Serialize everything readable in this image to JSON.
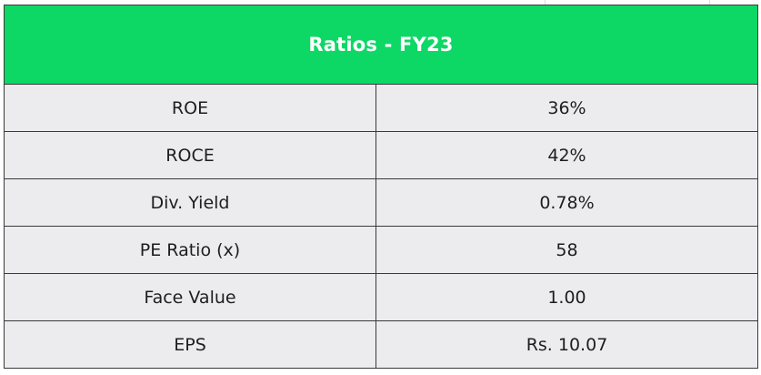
{
  "table": {
    "title": "Ratios - FY23",
    "rows": [
      {
        "label": "ROE",
        "value": "36%"
      },
      {
        "label": "ROCE",
        "value": "42%"
      },
      {
        "label": "Div. Yield",
        "value": "0.78%"
      },
      {
        "label": "PE Ratio (x)",
        "value": "58"
      },
      {
        "label": "Face Value",
        "value": "1.00"
      },
      {
        "label": "EPS",
        "value": "Rs. 10.07"
      }
    ]
  },
  "colors": {
    "header_bg": "#0dd866",
    "row_bg": "#ececee",
    "border": "#3a3a3a"
  }
}
